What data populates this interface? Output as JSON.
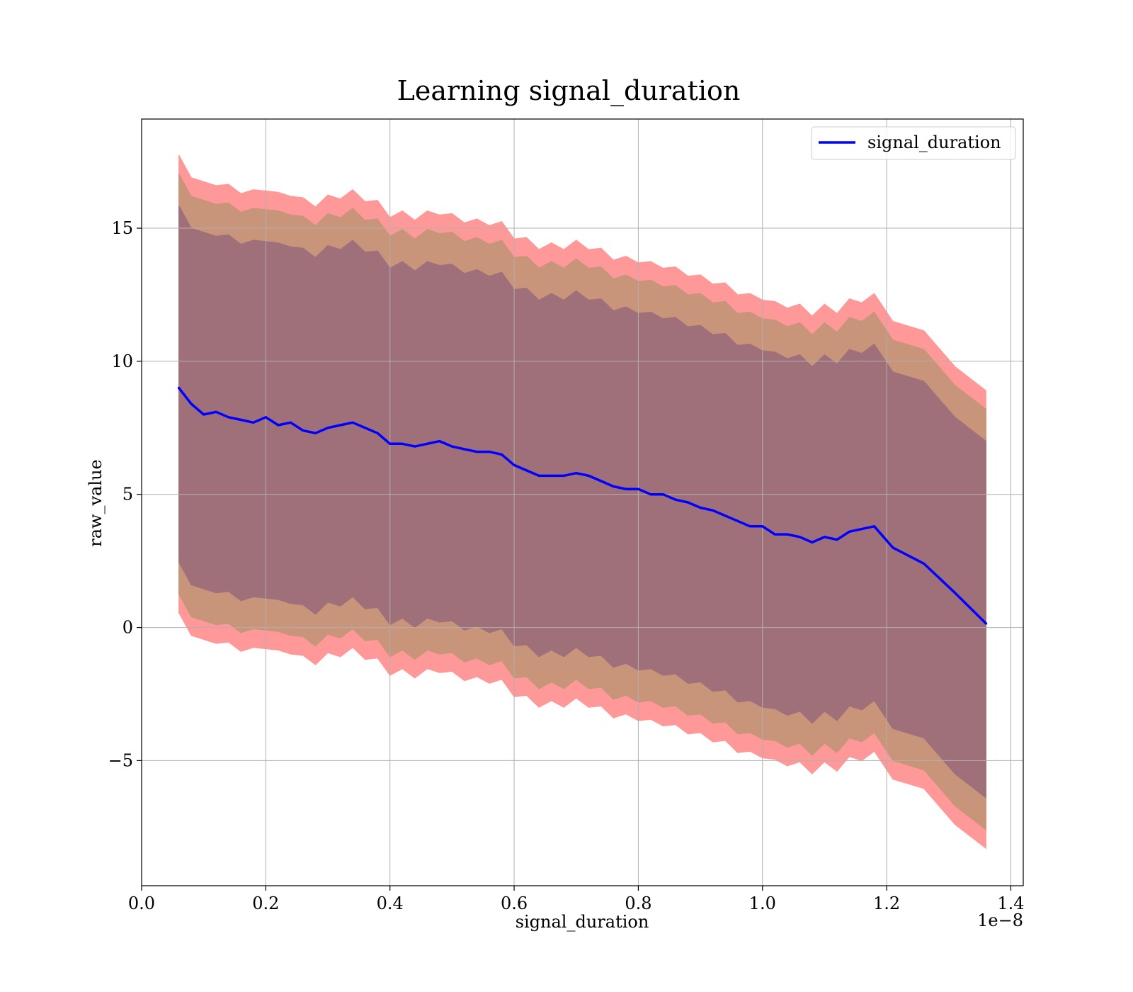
{
  "chart_data": {
    "type": "area",
    "title": "Learning signal_duration",
    "xlabel": "signal_duration",
    "ylabel": "raw_value",
    "x_offset_text": "1e−8",
    "xlim": [
      0.0,
      1.42
    ],
    "ylim": [
      -9.7,
      19.1
    ],
    "x_ticks": [
      0.0,
      0.2,
      0.4,
      0.6,
      0.8,
      1.0,
      1.2,
      1.4
    ],
    "x_tick_labels": [
      "0.0",
      "0.2",
      "0.4",
      "0.6",
      "0.8",
      "1.0",
      "1.2",
      "1.4"
    ],
    "y_ticks": [
      -5,
      0,
      5,
      10,
      15
    ],
    "y_tick_labels": [
      "−5",
      "0",
      "5",
      "10",
      "15"
    ],
    "grid": true,
    "legend": {
      "position": "top-right",
      "entries": [
        "signal_duration"
      ]
    },
    "colors": {
      "line": "#0000ff",
      "band_outer": "#ff9999",
      "band_middle": "#c8947a",
      "band_inner": "#a0707a"
    },
    "x": [
      0.06,
      0.08,
      0.1,
      0.12,
      0.14,
      0.16,
      0.18,
      0.2,
      0.22,
      0.24,
      0.26,
      0.28,
      0.3,
      0.32,
      0.34,
      0.36,
      0.38,
      0.4,
      0.42,
      0.44,
      0.46,
      0.48,
      0.5,
      0.52,
      0.54,
      0.56,
      0.58,
      0.6,
      0.62,
      0.64,
      0.66,
      0.68,
      0.7,
      0.72,
      0.74,
      0.76,
      0.78,
      0.8,
      0.82,
      0.84,
      0.86,
      0.88,
      0.9,
      0.92,
      0.94,
      0.96,
      0.98,
      1.0,
      1.02,
      1.04,
      1.06,
      1.08,
      1.1,
      1.12,
      1.14,
      1.16,
      1.18,
      1.21,
      1.26,
      1.31,
      1.36
    ],
    "series": [
      {
        "name": "signal_duration",
        "values": [
          9.0,
          8.4,
          8.0,
          8.1,
          7.9,
          7.8,
          7.7,
          7.9,
          7.6,
          7.7,
          7.4,
          7.3,
          7.5,
          7.6,
          7.7,
          7.5,
          7.3,
          6.9,
          6.9,
          6.8,
          6.9,
          7.0,
          6.8,
          6.7,
          6.6,
          6.6,
          6.5,
          6.1,
          5.9,
          5.7,
          5.7,
          5.7,
          5.8,
          5.7,
          5.5,
          5.3,
          5.2,
          5.2,
          5.0,
          5.0,
          4.8,
          4.7,
          4.5,
          4.4,
          4.2,
          4.0,
          3.8,
          3.8,
          3.5,
          3.5,
          3.4,
          3.2,
          3.4,
          3.3,
          3.6,
          3.7,
          3.8,
          3.0,
          2.4,
          1.3,
          0.15
        ]
      }
    ],
    "bands": [
      {
        "mean_plus_minus": 8.6
      },
      {
        "mean_plus_minus": 7.9
      },
      {
        "mean_plus_minus": 6.7
      }
    ]
  }
}
